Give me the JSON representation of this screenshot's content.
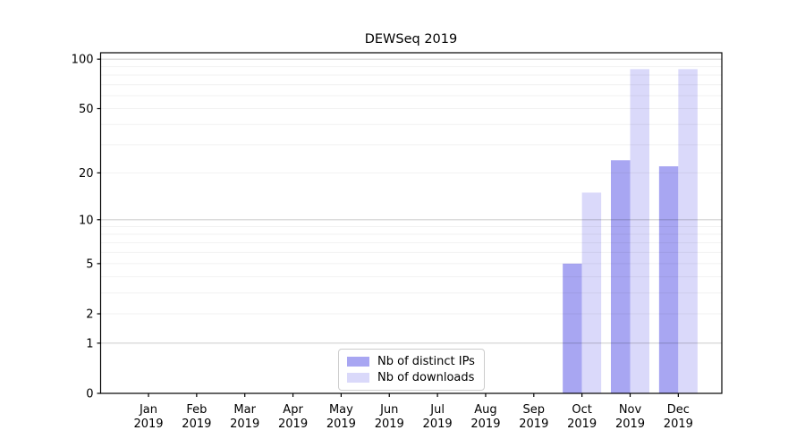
{
  "chart_data": {
    "type": "bar",
    "title": "DEWSeq 2019",
    "x_tick_months": [
      "Jan",
      "Feb",
      "Mar",
      "Apr",
      "May",
      "Jun",
      "Jul",
      "Aug",
      "Sep",
      "Oct",
      "Nov",
      "Dec"
    ],
    "x_tick_year": "2019",
    "series": [
      {
        "name": "Nb of distinct IPs",
        "color": "#a8a6f2",
        "values": [
          0,
          0,
          0,
          0,
          0,
          0,
          0,
          0,
          0,
          5,
          24,
          22
        ]
      },
      {
        "name": "Nb of downloads",
        "color": "#dad9fa",
        "values": [
          0,
          0,
          0,
          0,
          0,
          0,
          0,
          0,
          0,
          15,
          87,
          87
        ]
      }
    ],
    "y_scale": "log1p",
    "y_axis_ticks": [
      100,
      50,
      20,
      10,
      5,
      2,
      1,
      0
    ],
    "y_major_gridlines": [
      1,
      10,
      100
    ],
    "y_minor_gridlines": [
      2,
      3,
      4,
      5,
      6,
      7,
      8,
      9,
      20,
      30,
      40,
      50,
      60,
      70,
      80,
      90
    ],
    "ylim": [
      0,
      108
    ],
    "legend_position": "lower center",
    "colors": {
      "distinct_ips_bar": "#a8a6f2",
      "downloads_bar": "#dad9fa",
      "major_grid": "rgba(0,0,0,0.18)",
      "minor_grid": "rgba(0,0,0,0.055)",
      "spine": "#000000",
      "text": "#000000"
    }
  }
}
